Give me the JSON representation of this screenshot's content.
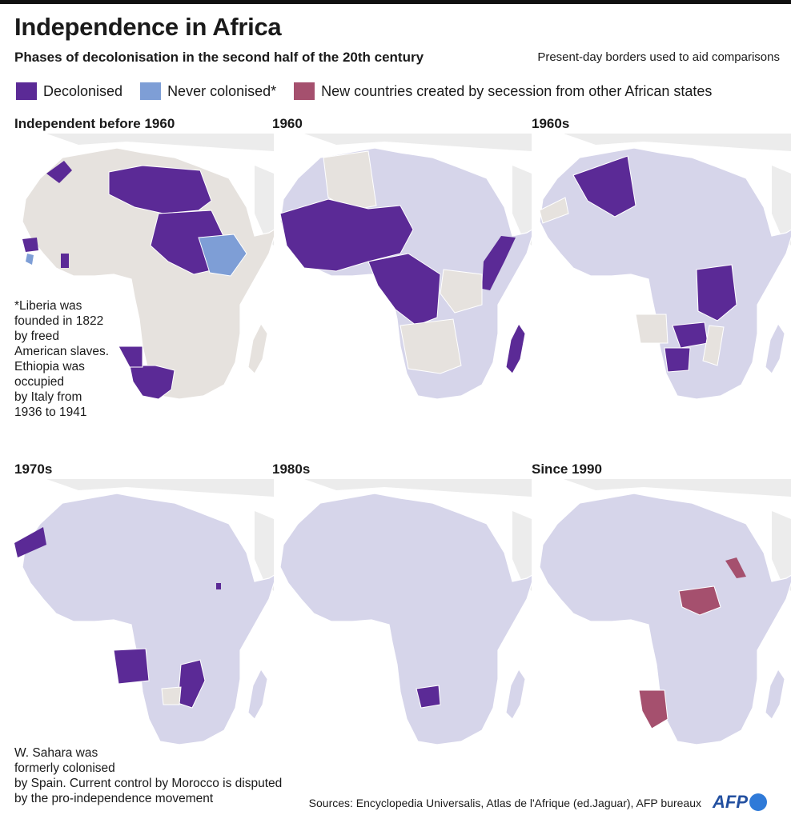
{
  "header": {
    "title": "Independence in Africa",
    "subtitle": "Phases of decolonisation in the second half of the 20th century",
    "borders_note": "Present-day borders used to aid comparisons"
  },
  "legend": [
    {
      "label": "Decolonised",
      "color": "#5b2a96"
    },
    {
      "label": "Never colonised*",
      "color": "#7e9ed6"
    },
    {
      "label": "New countries created by secession from other African states",
      "color": "#a5506e"
    }
  ],
  "colors": {
    "decolonised": "#5b2a96",
    "never_colonised": "#7e9ed6",
    "secession": "#a5506e",
    "already_independent": "#d6d5ea",
    "not_yet": "#e6e2de",
    "neighbour": "#ececec"
  },
  "panels": [
    {
      "title": "Independent before 1960"
    },
    {
      "title": "1960"
    },
    {
      "title": "1960s"
    },
    {
      "title": "1970s"
    },
    {
      "title": "1980s"
    },
    {
      "title": "Since 1990"
    }
  ],
  "notes": {
    "liberia": "*Liberia was\nfounded in 1822\nby freed\nAmerican slaves.\nEthiopia was\noccupied\nby Italy from\n1936 to 1941",
    "w_sahara": "W. Sahara was\nformerly colonised\nby Spain. Current control by Morocco is disputed\nby the pro-independence movement"
  },
  "footer": {
    "sources": "Sources: Encyclopedia Universalis, Atlas de l'Afrique (ed.Jaguar), AFP bureaux",
    "logo": "AFP"
  }
}
